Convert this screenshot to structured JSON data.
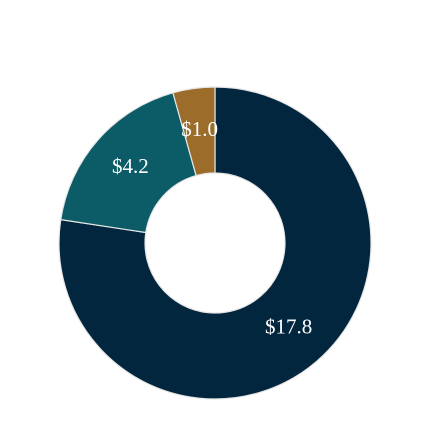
{
  "chart_data": {
    "type": "donut",
    "values": [
      17.8,
      4.2,
      1.0
    ],
    "value_labels": [
      "$17.8",
      "$4.2",
      "$1.0"
    ],
    "colors": [
      "#03263f",
      "#0b5c66",
      "#9b6c2a"
    ]
  }
}
